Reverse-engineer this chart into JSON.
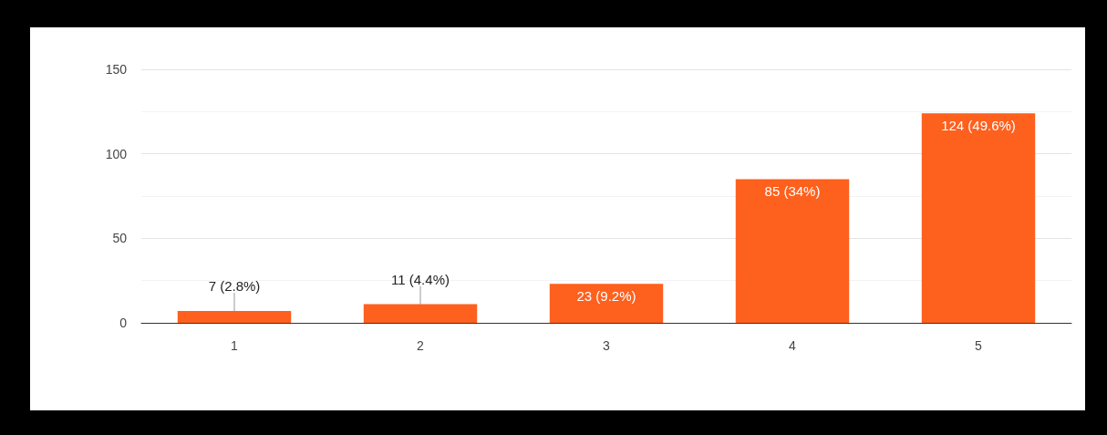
{
  "chart_data": {
    "type": "bar",
    "categories": [
      "1",
      "2",
      "3",
      "4",
      "5"
    ],
    "values": [
      7,
      11,
      23,
      85,
      124
    ],
    "value_labels": [
      "7 (2.8%)",
      "11 (4.4%)",
      "23 (9.2%)",
      "85 (34%)",
      "124 (49.6%)"
    ],
    "color": "#fe601e",
    "ylim": [
      0,
      150
    ],
    "yticks": [
      0,
      {
        "value": 25,
        "label": null
      },
      50,
      {
        "value": 75,
        "label": null
      },
      100,
      {
        "value": 125,
        "label": null
      },
      150
    ],
    "grid": "y"
  }
}
